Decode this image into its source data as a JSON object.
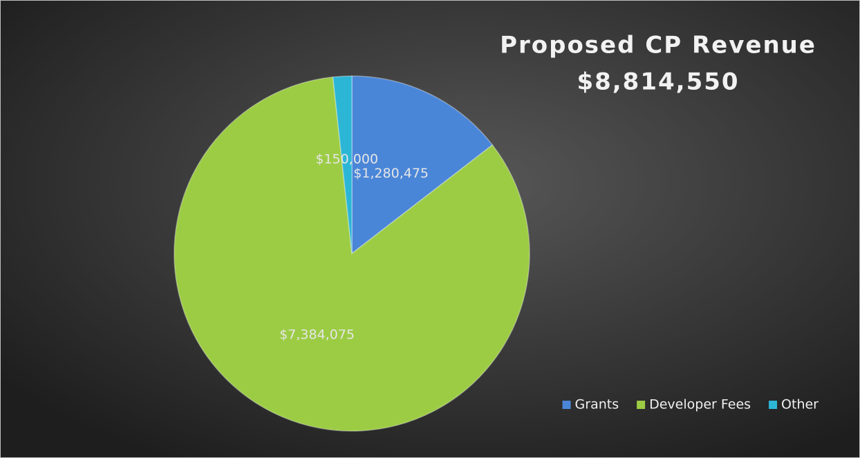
{
  "chart_data": {
    "type": "pie",
    "title": "Proposed CP Revenue",
    "subtitle": "$8,814,550",
    "categories": [
      "Grants",
      "Developer Fees",
      "Other"
    ],
    "values": [
      1280475,
      7384075,
      150000
    ],
    "value_labels": [
      "$1,280,475",
      "$7,384,075",
      "$150,000"
    ],
    "colors": [
      "#4a86d8",
      "#9ccc44",
      "#2cb6d6"
    ],
    "legend": "bottom-right"
  }
}
